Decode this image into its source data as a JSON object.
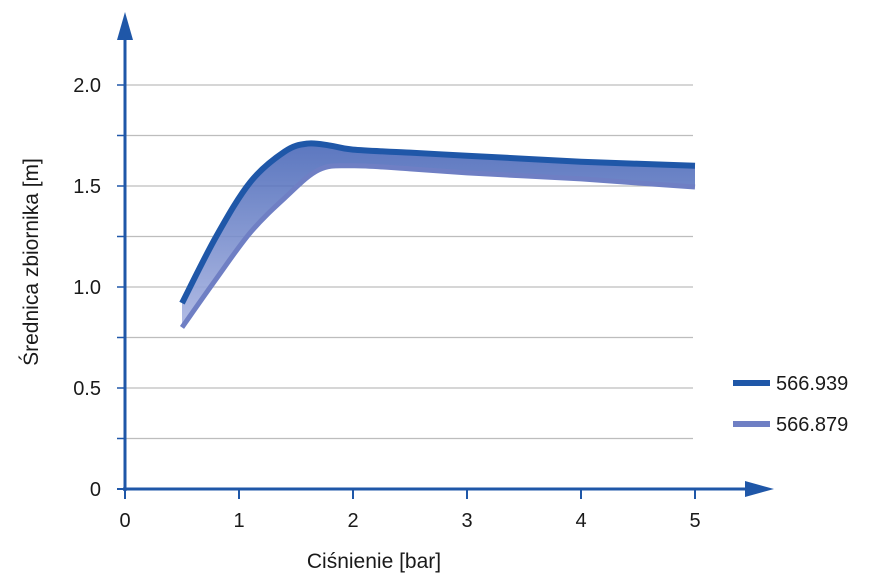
{
  "chart_data": {
    "type": "area",
    "xlabel": "Ciśnienie [bar]",
    "ylabel": "Średnica zbiornika [m]",
    "xlim": [
      0,
      5.6
    ],
    "ylim": [
      0,
      2.4
    ],
    "x_ticks": [
      0,
      1,
      2,
      3,
      4,
      5
    ],
    "x_tick_labels": [
      "0",
      "1",
      "2",
      "3",
      "4",
      "5"
    ],
    "y_ticks": [
      0,
      0.5,
      1.0,
      1.5,
      2.0
    ],
    "y_tick_labels": [
      "0",
      "0.5",
      "1.0",
      "1.5",
      "2.0"
    ],
    "grid": true,
    "legend_position": "right",
    "series": [
      {
        "name": "566.939",
        "color": "#1f57a8",
        "x": [
          0.5,
          0.8,
          1.1,
          1.4,
          1.6,
          1.8,
          2.0,
          2.5,
          3.0,
          3.5,
          4.0,
          4.5,
          5.0
        ],
        "values": [
          0.92,
          1.25,
          1.52,
          1.67,
          1.71,
          1.7,
          1.68,
          1.665,
          1.65,
          1.635,
          1.62,
          1.61,
          1.6
        ]
      },
      {
        "name": "566.879",
        "color": "#6f7fc4",
        "x": [
          0.5,
          0.8,
          1.1,
          1.4,
          1.7,
          2.0,
          2.5,
          3.0,
          3.5,
          4.0,
          4.5,
          5.0
        ],
        "values": [
          0.8,
          1.04,
          1.27,
          1.44,
          1.58,
          1.6,
          1.585,
          1.565,
          1.55,
          1.535,
          1.515,
          1.495
        ]
      }
    ]
  }
}
